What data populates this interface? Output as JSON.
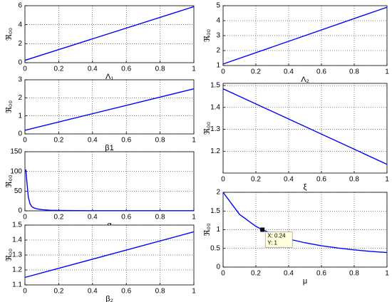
{
  "chart_data": [
    {
      "type": "line",
      "xlabel": "Λ₁",
      "ylabel": "ℜ₀₀",
      "x": [
        0,
        1
      ],
      "values": [
        0.25,
        5.9
      ],
      "color": "#0000ff",
      "xlim": [
        0,
        1
      ],
      "ylim": [
        0,
        6
      ],
      "xticks": [
        0,
        0.2,
        0.4,
        0.6,
        0.8,
        1
      ],
      "yticks": [
        0,
        2,
        4,
        6
      ],
      "grid": true
    },
    {
      "type": "line",
      "xlabel": "β1",
      "ylabel": "ℜ₀₀",
      "x": [
        0,
        1
      ],
      "values": [
        0.2,
        2.5
      ],
      "color": "#0000ff",
      "xlim": [
        0,
        1
      ],
      "ylim": [
        0,
        3
      ],
      "xticks": [
        0,
        0.2,
        0.4,
        0.6,
        0.8,
        1
      ],
      "yticks": [
        0,
        1,
        2,
        3
      ],
      "grid": true
    },
    {
      "type": "line",
      "xlabel": "α",
      "ylabel": "ℜ₀₀",
      "x": [
        0.005,
        0.01,
        0.02,
        0.03,
        0.04,
        0.05,
        0.07,
        0.1,
        0.15,
        0.2,
        0.3,
        0.4,
        0.5,
        0.6,
        0.7,
        0.8,
        0.9,
        1
      ],
      "values": [
        105,
        80,
        35,
        18,
        11,
        8,
        5,
        3,
        1.5,
        1,
        0.6,
        0.4,
        0.3,
        0.3,
        0.3,
        0.3,
        0.3,
        0.3
      ],
      "color": "#0000ff",
      "xlim": [
        0,
        1
      ],
      "ylim": [
        0,
        150
      ],
      "xticks": [
        0,
        0.2,
        0.4,
        0.6,
        0.8,
        1
      ],
      "yticks": [
        0,
        50,
        100,
        150
      ],
      "grid": true
    },
    {
      "type": "line",
      "xlabel": "β₂",
      "ylabel": "ℜ₀₀",
      "x": [
        0,
        1
      ],
      "values": [
        1.15,
        1.455
      ],
      "color": "#0000ff",
      "xlim": [
        0,
        1
      ],
      "ylim": [
        1.1,
        1.5
      ],
      "xticks": [
        0,
        0.2,
        0.4,
        0.6,
        0.8,
        1
      ],
      "yticks": [
        1.1,
        1.2,
        1.3,
        1.4,
        1.5
      ],
      "grid": true
    },
    {
      "type": "line",
      "xlabel": "Λ₂",
      "ylabel": "ℜ₀₀",
      "x": [
        0,
        1
      ],
      "values": [
        1.1,
        4.9
      ],
      "color": "#0000ff",
      "xlim": [
        0,
        1
      ],
      "ylim": [
        1,
        5
      ],
      "xticks": [
        0,
        0.2,
        0.4,
        0.6,
        0.8,
        1
      ],
      "yticks": [
        1,
        2,
        3,
        4,
        5
      ],
      "grid": true
    },
    {
      "type": "line",
      "xlabel": "ξ",
      "ylabel": "ℜ₀₀",
      "x": [
        0,
        1
      ],
      "values": [
        1.485,
        1.14
      ],
      "color": "#0000ff",
      "xlim": [
        0,
        1
      ],
      "ylim": [
        1.1,
        1.51
      ],
      "xticks": [
        0,
        0.2,
        0.4,
        0.6,
        0.8,
        1
      ],
      "yticks": [
        1.2,
        1.3,
        1.4,
        1.5
      ],
      "grid": true
    },
    {
      "type": "line",
      "xlabel": "μ",
      "ylabel": "ℜ₀₀",
      "x": [
        0,
        0.1,
        0.2,
        0.24,
        0.3,
        0.4,
        0.5,
        0.6,
        0.7,
        0.8,
        0.9,
        1
      ],
      "values": [
        2,
        1.41,
        1.09,
        1,
        0.89,
        0.75,
        0.65,
        0.57,
        0.51,
        0.46,
        0.42,
        0.39
      ],
      "color": "#0000ff",
      "xlim": [
        0,
        1
      ],
      "ylim": [
        0,
        2
      ],
      "xticks": [
        0,
        0.2,
        0.4,
        0.6,
        0.8,
        1
      ],
      "yticks": [
        0,
        0.5,
        1,
        1.5,
        2
      ],
      "grid": true,
      "datatip": {
        "x": 0.24,
        "y": 1,
        "labels": [
          "X: 0.24",
          "Y: 1"
        ]
      }
    }
  ]
}
